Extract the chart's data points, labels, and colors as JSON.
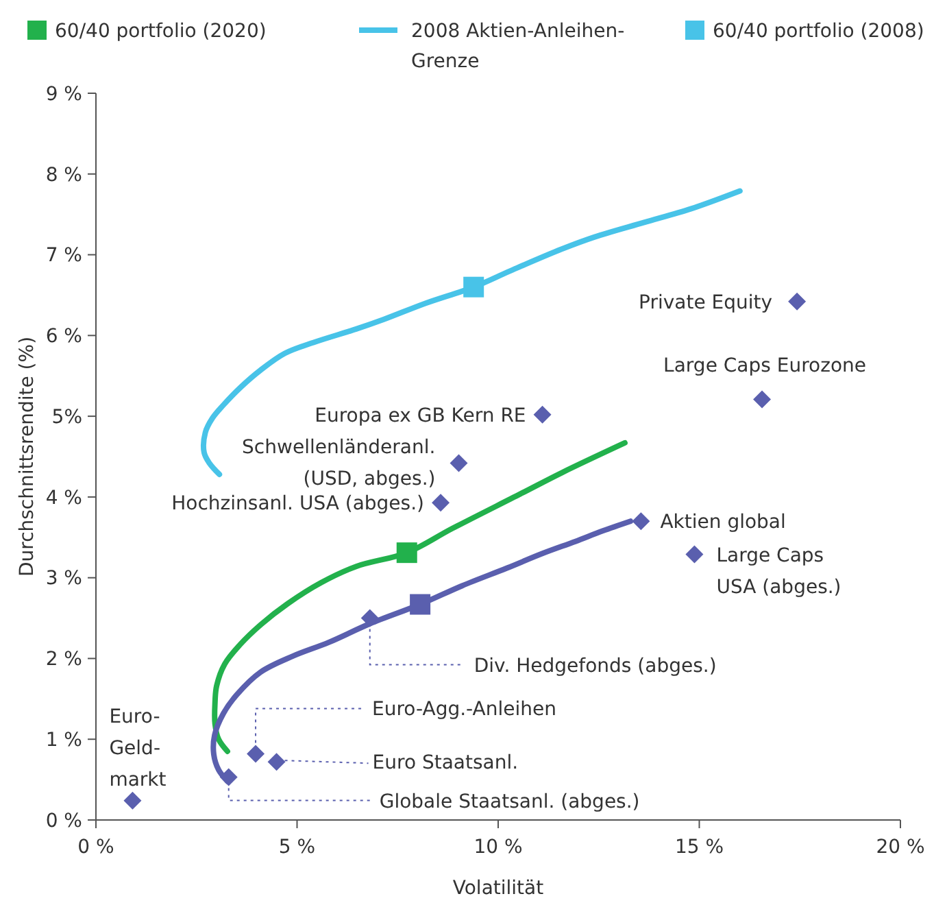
{
  "chart_data": {
    "type": "scatter",
    "xlabel": "Volatilität",
    "ylabel": "Durchschnittsrendite (%)",
    "xlim": [
      0,
      20
    ],
    "ylim": [
      0,
      9
    ],
    "xticks": [
      {
        "value": 0,
        "label": "0 %"
      },
      {
        "value": 5,
        "label": "5 %"
      },
      {
        "value": 10,
        "label": "10 %"
      },
      {
        "value": 15,
        "label": "15 %"
      },
      {
        "value": 20,
        "label": "20 %"
      }
    ],
    "yticks": [
      {
        "value": 0,
        "label": "0 %"
      },
      {
        "value": 1,
        "label": "1 %"
      },
      {
        "value": 2,
        "label": "2 %"
      },
      {
        "value": 3,
        "label": "3 %"
      },
      {
        "value": 4,
        "label": "4 %"
      },
      {
        "value": 5,
        "label": "5%"
      },
      {
        "value": 6,
        "label": "6 %"
      },
      {
        "value": 7,
        "label": "7 %"
      },
      {
        "value": 8,
        "label": "8 %"
      },
      {
        "value": 9,
        "label": "9 %"
      }
    ],
    "grid": false,
    "legend": "top",
    "series": [
      {
        "name": "60/40 portfolio (2020)",
        "color": "#22b14c",
        "marker": "square",
        "x": [
          7.73
        ],
        "values": [
          3.31
        ]
      },
      {
        "type": "line",
        "name": "2008 Aktien-Anleihen-Grenze",
        "color": "#48c3e8",
        "marker": "none",
        "x": [
          3.07,
          2.82,
          2.69,
          2.72,
          2.9,
          3.17,
          3.6,
          4.09,
          4.7,
          5.45,
          6.47,
          7.16,
          8.2,
          9.39,
          10.3,
          11.58,
          12.4,
          13.63,
          14.8,
          16.01
        ],
        "values": [
          4.28,
          4.42,
          4.55,
          4.8,
          4.98,
          5.14,
          5.36,
          5.57,
          5.78,
          5.92,
          6.08,
          6.2,
          6.4,
          6.6,
          6.8,
          7.07,
          7.22,
          7.4,
          7.57,
          7.79
        ]
      },
      {
        "name": "60/40 portfolio (2008)",
        "color": "#48c3e8",
        "marker": "square",
        "x": [
          9.39
        ],
        "values": [
          6.6
        ]
      },
      {
        "type": "line",
        "color": "#22b14c",
        "marker": "none",
        "x": [
          3.27,
          3.05,
          2.96,
          2.96,
          3.0,
          3.2,
          3.58,
          4.1,
          4.77,
          5.6,
          6.47,
          7.73,
          8.86,
          10.56,
          11.58,
          13.15
        ],
        "values": [
          0.85,
          1.0,
          1.19,
          1.45,
          1.66,
          1.93,
          2.17,
          2.42,
          2.68,
          2.94,
          3.14,
          3.31,
          3.61,
          4.04,
          4.3,
          4.67
        ]
      },
      {
        "type": "line",
        "color": "#5a5fae",
        "marker": "none",
        "x": [
          3.27,
          3.05,
          2.93,
          2.95,
          3.17,
          3.5,
          4.09,
          4.9,
          5.79,
          6.81,
          8.06,
          9.1,
          10.22,
          11.1,
          11.92,
          12.6,
          13.29
        ],
        "values": [
          0.48,
          0.62,
          0.81,
          1.05,
          1.32,
          1.55,
          1.83,
          2.03,
          2.2,
          2.43,
          2.67,
          2.9,
          3.12,
          3.3,
          3.45,
          3.58,
          3.7
        ]
      },
      {
        "color": "#5a5fae",
        "marker": "diamond",
        "x": [
          0.91,
          3.3,
          4.49,
          3.97,
          6.81,
          8.57,
          9.02,
          11.1,
          13.55,
          14.88,
          16.56,
          17.43
        ],
        "values": [
          0.24,
          0.53,
          0.72,
          0.82,
          2.5,
          3.93,
          4.42,
          5.02,
          3.7,
          3.29,
          5.21,
          6.42
        ]
      },
      {
        "color": "#5a5fae",
        "marker": "square",
        "x": [
          8.06
        ],
        "values": [
          2.67
        ]
      }
    ],
    "annotations": [
      {
        "text": "Euro-\nGeld-\nmarkt",
        "x": 0.91,
        "y": 0.24
      },
      {
        "text": "Globale Staatsanl. (abges.)",
        "x": 3.3,
        "y": 0.53
      },
      "Euro Staatsanl.",
      {
        "text": "Euro-Agg.-Anleihen",
        "x": 3.97,
        "y": 0.82
      },
      {
        "text": "Div. Hedgefonds (abges.)",
        "x": 6.81,
        "y": 2.5
      },
      {
        "text": "Hochzinsanl. USA (abges.)",
        "x": 8.57,
        "y": 3.93
      },
      {
        "text": "Schwellenländeranl.\n(USD, abges.)",
        "x": 9.02,
        "y": 4.42
      },
      {
        "text": "Europa ex GB Kern RE",
        "x": 11.1,
        "y": 5.02
      },
      {
        "text": "Aktien global",
        "x": 13.55,
        "y": 3.7
      },
      {
        "text": "Large Caps\nUSA (abges.)",
        "x": 14.88,
        "y": 3.29
      },
      {
        "text": "Large Caps Eurozone",
        "x": 16.56,
        "y": 5.21
      },
      {
        "text": "Private Equity",
        "x": 17.43,
        "y": 6.42
      }
    ]
  }
}
